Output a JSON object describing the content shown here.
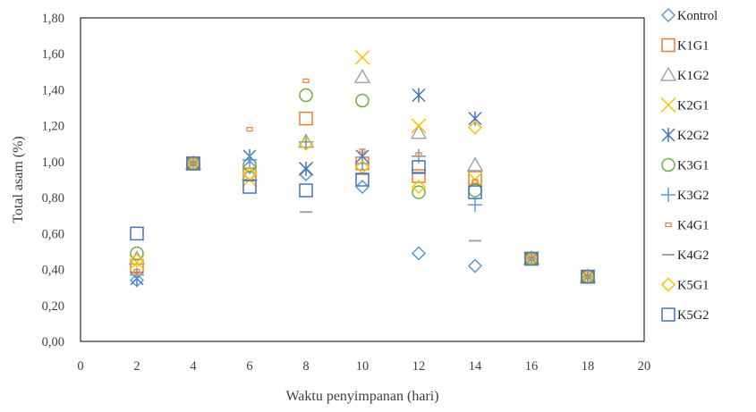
{
  "chart_data": {
    "type": "scatter",
    "xlabel": "Waktu penyimpanan (hari)",
    "ylabel": "Total asam (%)",
    "xlim": [
      0,
      20
    ],
    "ylim": [
      0,
      1.8
    ],
    "x_ticks": [
      0,
      2,
      4,
      6,
      8,
      10,
      12,
      14,
      16,
      18,
      20
    ],
    "x_tick_labels": [
      "0",
      "2",
      "4",
      "6",
      "8",
      "10",
      "12",
      "14",
      "16",
      "18",
      "20"
    ],
    "y_ticks": [
      0,
      0.2,
      0.4,
      0.6,
      0.8,
      1.0,
      1.2,
      1.4,
      1.6,
      1.8
    ],
    "y_tick_labels": [
      "0,00",
      "0,20",
      "0,40",
      "0,60",
      "0,80",
      "1,00",
      "1,20",
      "1,40",
      "1,60",
      "1,80"
    ],
    "grid": false,
    "legend_position": "right",
    "series": [
      {
        "name": "Kontrol",
        "marker": "diamond",
        "color": "#5b9bd5",
        "points": [
          [
            2,
            0.34
          ],
          [
            4,
            0.99
          ],
          [
            6,
            0.97
          ],
          [
            8,
            0.93
          ],
          [
            10,
            0.86
          ],
          [
            12,
            0.49
          ],
          [
            14,
            0.42
          ],
          [
            16,
            0.46
          ],
          [
            18,
            0.36
          ]
        ]
      },
      {
        "name": "K1G1",
        "marker": "square",
        "color": "#ed7d31",
        "points": [
          [
            2,
            0.42
          ],
          [
            4,
            0.99
          ],
          [
            6,
            0.93
          ],
          [
            8,
            1.24
          ],
          [
            10,
            0.99
          ],
          [
            12,
            0.92
          ],
          [
            14,
            0.91
          ],
          [
            16,
            0.46
          ],
          [
            18,
            0.36
          ]
        ]
      },
      {
        "name": "K1G2",
        "marker": "triangle",
        "color": "#a5a5a5",
        "points": [
          [
            2,
            0.46
          ],
          [
            4,
            0.99
          ],
          [
            6,
            0.93
          ],
          [
            8,
            1.11
          ],
          [
            10,
            1.47
          ],
          [
            12,
            1.16
          ],
          [
            14,
            0.98
          ],
          [
            16,
            0.46
          ],
          [
            18,
            0.36
          ]
        ]
      },
      {
        "name": "K2G1",
        "marker": "x",
        "color": "#ffc000",
        "points": [
          [
            2,
            0.44
          ],
          [
            4,
            0.99
          ],
          [
            6,
            0.9
          ],
          [
            8,
            0.96
          ],
          [
            10,
            1.58
          ],
          [
            12,
            1.2
          ],
          [
            14,
            0.9
          ],
          [
            16,
            0.46
          ],
          [
            18,
            0.36
          ]
        ]
      },
      {
        "name": "K2G2",
        "marker": "asterisk",
        "color": "#4472c4",
        "points": [
          [
            2,
            0.35
          ],
          [
            4,
            0.99
          ],
          [
            6,
            1.03
          ],
          [
            8,
            0.96
          ],
          [
            10,
            1.03
          ],
          [
            12,
            1.37
          ],
          [
            14,
            1.24
          ],
          [
            16,
            0.46
          ],
          [
            18,
            0.36
          ]
        ]
      },
      {
        "name": "K3G1",
        "marker": "circle",
        "color": "#70ad47",
        "points": [
          [
            2,
            0.49
          ],
          [
            4,
            0.99
          ],
          [
            6,
            0.98
          ],
          [
            8,
            1.37
          ],
          [
            10,
            1.34
          ],
          [
            12,
            0.83
          ],
          [
            14,
            0.84
          ],
          [
            16,
            0.46
          ],
          [
            18,
            0.36
          ]
        ]
      },
      {
        "name": "K3G2",
        "marker": "plus",
        "color": "#5b9bd5",
        "points": [
          [
            2,
            0.37
          ],
          [
            4,
            0.99
          ],
          [
            6,
            1.01
          ],
          [
            8,
            1.11
          ],
          [
            10,
            0.99
          ],
          [
            12,
            1.03
          ],
          [
            14,
            0.76
          ],
          [
            16,
            0.46
          ],
          [
            18,
            0.36
          ]
        ]
      },
      {
        "name": "K4G1",
        "marker": "dash",
        "color": "#ed7d31",
        "points": [
          [
            2,
            0.39
          ],
          [
            4,
            0.99
          ],
          [
            6,
            1.18
          ],
          [
            8,
            1.45
          ],
          [
            10,
            1.06
          ],
          [
            12,
            1.04
          ],
          [
            14,
            0.89
          ],
          [
            16,
            0.46
          ],
          [
            18,
            0.36
          ]
        ]
      },
      {
        "name": "K4G2",
        "marker": "line",
        "color": "#a5a5a5",
        "points": [
          [
            2,
            0.37
          ],
          [
            4,
            0.99
          ],
          [
            6,
            0.9
          ],
          [
            8,
            0.72
          ],
          [
            10,
            0.93
          ],
          [
            12,
            0.94
          ],
          [
            14,
            0.56
          ],
          [
            16,
            0.46
          ],
          [
            18,
            0.36
          ]
        ]
      },
      {
        "name": "K5G1",
        "marker": "diamond",
        "color": "#ffc000",
        "points": [
          [
            2,
            0.45
          ],
          [
            4,
            0.99
          ],
          [
            6,
            0.93
          ],
          [
            8,
            1.1
          ],
          [
            10,
            0.97
          ],
          [
            12,
            0.86
          ],
          [
            14,
            1.19
          ],
          [
            16,
            0.46
          ],
          [
            18,
            0.36
          ]
        ]
      },
      {
        "name": "K5G2",
        "marker": "square",
        "color": "#4472c4",
        "points": [
          [
            2,
            0.6
          ],
          [
            4,
            0.99
          ],
          [
            6,
            0.86
          ],
          [
            8,
            0.84
          ],
          [
            10,
            0.9
          ],
          [
            12,
            0.97
          ],
          [
            14,
            0.83
          ],
          [
            16,
            0.46
          ],
          [
            18,
            0.36
          ]
        ]
      }
    ]
  }
}
